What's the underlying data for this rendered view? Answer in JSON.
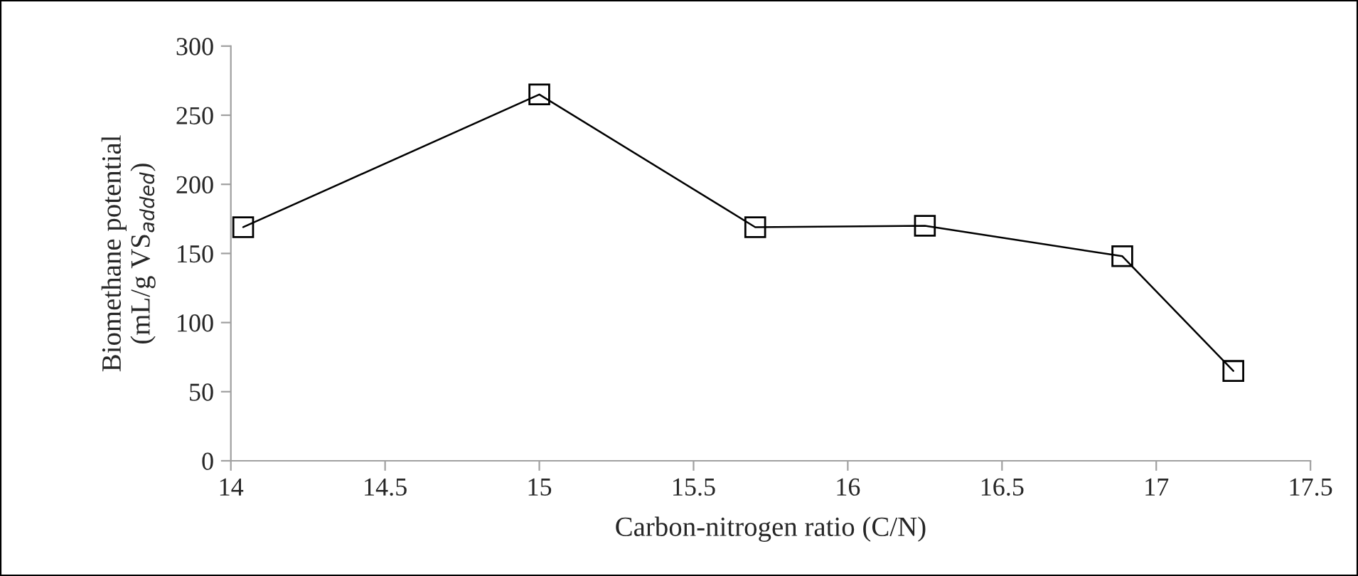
{
  "chart_data": {
    "type": "line",
    "xlabel": "Carbon-nitrogen ratio (C/N)",
    "ylabel": "Biomethane potential\n(mL/g VS$_{added}$)",
    "x": [
      14.04,
      15.0,
      15.7,
      16.25,
      16.89,
      17.25
    ],
    "series": [
      {
        "color": "#000000",
        "values": [
          169,
          265,
          169,
          170,
          148,
          65
        ]
      }
    ],
    "xlim": [
      14,
      17.5
    ],
    "xticks": [
      14,
      14.5,
      15,
      15.5,
      16,
      16.5,
      17,
      17.5
    ],
    "ylim": [
      0,
      300
    ],
    "yticks": [
      0,
      50,
      100,
      150,
      200,
      250,
      300
    ],
    "marker": "square",
    "line_style": "solid",
    "grid": false,
    "legend": false
  }
}
